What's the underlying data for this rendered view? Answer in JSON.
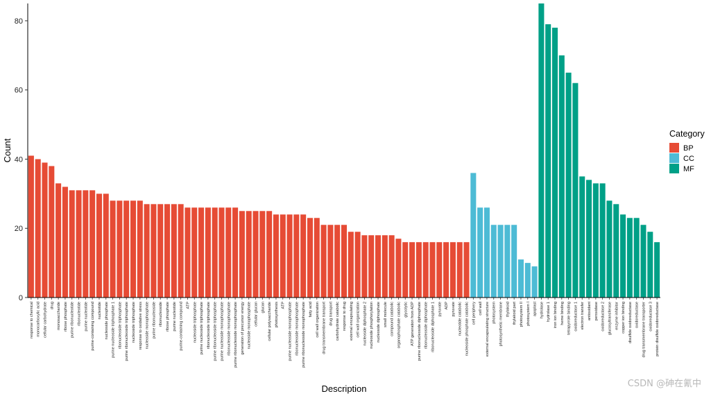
{
  "chart_data": {
    "type": "bar",
    "xlabel": "Description",
    "ylabel": "Count",
    "ylim": [
      0,
      85
    ],
    "yticks": [
      0,
      20,
      40,
      60,
      80
    ],
    "grid": false,
    "legend": {
      "title": "Category",
      "placement": "right",
      "entries": [
        {
          "name": "BP",
          "color": "#E64B35"
        },
        {
          "name": "CC",
          "color": "#4DBBD5"
        },
        {
          "name": "MF",
          "color": "#00A087"
        }
      ]
    },
    "bars": [
      {
        "label": "response to chemical",
        "value": 41,
        "category": "BP"
      },
      {
        "label": "monocarboxylic acid",
        "value": 40,
        "category": "BP"
      },
      {
        "label": "cellular carbohydrate",
        "value": 39,
        "category": "BP"
      },
      {
        "label": "drug",
        "value": 38,
        "category": "BP"
      },
      {
        "label": "monosaccharide",
        "value": 33,
        "category": "BP"
      },
      {
        "label": "ribose phosphate",
        "value": 32,
        "category": "BP"
      },
      {
        "label": "purine ribonucleotide",
        "value": 31,
        "category": "BP"
      },
      {
        "label": "ribonucleotide",
        "value": 31,
        "category": "BP"
      },
      {
        "label": "purine nucleotide",
        "value": 31,
        "category": "BP"
      },
      {
        "label": "purine-containing compound",
        "value": 31,
        "category": "BP"
      },
      {
        "label": "nucleotide",
        "value": 30,
        "category": "BP"
      },
      {
        "label": "nucleoside phosphate",
        "value": 30,
        "category": "BP"
      },
      {
        "label": "purine nucleoside triphosphate 1",
        "value": 28,
        "category": "BP"
      },
      {
        "label": "ribonucleoside triphosphate",
        "value": 28,
        "category": "BP"
      },
      {
        "label": "purine ribonucleoside triphosphate",
        "value": 28,
        "category": "BP"
      },
      {
        "label": "nucleoside triphosphate",
        "value": 28,
        "category": "BP"
      },
      {
        "label": "response to oxidative stress",
        "value": 28,
        "category": "BP"
      },
      {
        "label": "nucleoside monophosphate",
        "value": 27,
        "category": "BP"
      },
      {
        "label": "purine ribonucleoside",
        "value": 27,
        "category": "BP"
      },
      {
        "label": "ribonucleoside",
        "value": 27,
        "category": "BP"
      },
      {
        "label": "ribose phosphate",
        "value": 27,
        "category": "BP"
      },
      {
        "label": "purine nucleotide",
        "value": 27,
        "category": "BP"
      },
      {
        "label": "purine-containing compound",
        "value": 27,
        "category": "BP"
      },
      {
        "label": "ATP",
        "value": 26,
        "category": "BP"
      },
      {
        "label": "nucleoside triphosphate",
        "value": 26,
        "category": "BP"
      },
      {
        "label": "purine nucleoside triphosphate",
        "value": 26,
        "category": "BP"
      },
      {
        "label": "ribonucleoside triphosphate",
        "value": 26,
        "category": "BP"
      },
      {
        "label": "purine ribonucleoside triphosphate",
        "value": 26,
        "category": "BP"
      },
      {
        "label": "purine nucleoside monophosphate",
        "value": 26,
        "category": "BP"
      },
      {
        "label": "ribonucleoside monophosphate",
        "value": 26,
        "category": "BP"
      },
      {
        "label": "purine ribonucleoside monophosphate",
        "value": 26,
        "category": "BP"
      },
      {
        "label": "generation of precursor energy",
        "value": 25,
        "category": "BP"
      },
      {
        "label": "nucleoside monophosphate",
        "value": 25,
        "category": "BP"
      },
      {
        "label": "cellular glucan",
        "value": 25,
        "category": "BP"
      },
      {
        "label": "glucan",
        "value": 25,
        "category": "BP"
      },
      {
        "label": "cellular polysaccharide",
        "value": 25,
        "category": "BP"
      },
      {
        "label": "photosynthesis",
        "value": 24,
        "category": "BP"
      },
      {
        "label": "ATP",
        "value": 24,
        "category": "BP"
      },
      {
        "label": "purine nucleoside monophosphate",
        "value": 24,
        "category": "BP"
      },
      {
        "label": "ribonucleoside monophosphate",
        "value": 24,
        "category": "BP"
      },
      {
        "label": "purine ribonucleoside monophosphate",
        "value": 24,
        "category": "BP"
      },
      {
        "label": "fatty acid",
        "value": 23,
        "category": "BP"
      },
      {
        "label": "cell wall organization",
        "value": 23,
        "category": "BP"
      },
      {
        "label": "drug transmembrane transport",
        "value": 21,
        "category": "BP"
      },
      {
        "label": "drug transport",
        "value": 21,
        "category": "BP"
      },
      {
        "label": "carbohydrate catabolic",
        "value": 21,
        "category": "BP"
      },
      {
        "label": "response to drug",
        "value": 21,
        "category": "BP"
      },
      {
        "label": "external encapsulating",
        "value": 19,
        "category": "BP"
      },
      {
        "label": "cell wall organization",
        "value": 19,
        "category": "BP"
      },
      {
        "label": "nucleoside diphosphate 2",
        "value": 18,
        "category": "BP"
      },
      {
        "label": "nucleoside phosphorylation",
        "value": 18,
        "category": "BP"
      },
      {
        "label": "nucleoside diphosphate",
        "value": 18,
        "category": "BP"
      },
      {
        "label": "small molecule",
        "value": 18,
        "category": "BP"
      },
      {
        "label": "compound catabolic",
        "value": 18,
        "category": "BP"
      },
      {
        "label": "organophosphate catabolic",
        "value": 17,
        "category": "BP"
      },
      {
        "label": "glycolytic",
        "value": 16,
        "category": "BP"
      },
      {
        "label": "ATP generation from ADP",
        "value": 16,
        "category": "BP"
      },
      {
        "label": "purine ribonucleoside diphosphate",
        "value": 16,
        "category": "BP"
      },
      {
        "label": "ribonucleoside diphosphate",
        "value": 16,
        "category": "BP"
      },
      {
        "label": "ribonucleoside diphosphate 1",
        "value": 16,
        "category": "BP"
      },
      {
        "label": "pyruvate",
        "value": 16,
        "category": "BP"
      },
      {
        "label": "ADP",
        "value": 16,
        "category": "BP"
      },
      {
        "label": "pyruvate",
        "value": 16,
        "category": "BP"
      },
      {
        "label": "nucleotide catabolic",
        "value": 16,
        "category": "BP"
      },
      {
        "label": "nucleoside phosphate catabolic",
        "value": 16,
        "category": "BP"
      },
      {
        "label": "cell periphery",
        "value": 36,
        "category": "CC"
      },
      {
        "label": "cell wall",
        "value": 26,
        "category": "CC"
      },
      {
        "label": "external encapsulating structure",
        "value": 26,
        "category": "CC"
      },
      {
        "label": "photosystem",
        "value": 21,
        "category": "CC"
      },
      {
        "label": "photosynthetic membrane",
        "value": 21,
        "category": "CC"
      },
      {
        "label": "thylakoid",
        "value": 21,
        "category": "CC"
      },
      {
        "label": "thylakoid part",
        "value": 21,
        "category": "CC"
      },
      {
        "label": "photosystem II",
        "value": 11,
        "category": "CC"
      },
      {
        "label": "photosystem I",
        "value": 10,
        "category": "CC"
      },
      {
        "label": "apoplast",
        "value": 9,
        "category": "CC"
      },
      {
        "label": "hydrolase",
        "value": 85,
        "category": "MF"
      },
      {
        "label": "hydrolase 1",
        "value": 79,
        "category": "MF"
      },
      {
        "label": "iron ion binding",
        "value": 78,
        "category": "MF"
      },
      {
        "label": "heme binding",
        "value": 70,
        "category": "MF"
      },
      {
        "label": "tetrapyrrole binding",
        "value": 65,
        "category": "MF"
      },
      {
        "label": "oxidoreductase 1",
        "value": 62,
        "category": "MF"
      },
      {
        "label": "electron transfer",
        "value": 35,
        "category": "MF"
      },
      {
        "label": "antioxidant",
        "value": 34,
        "category": "MF"
      },
      {
        "label": "peroxidase",
        "value": 33,
        "category": "MF"
      },
      {
        "label": "oxidoreductase 2",
        "value": 33,
        "category": "MF"
      },
      {
        "label": "glucosyltransferase",
        "value": 28,
        "category": "MF"
      },
      {
        "label": "enzyme inhibitor",
        "value": 27,
        "category": "MF"
      },
      {
        "label": "copper ion binding",
        "value": 24,
        "category": "MF"
      },
      {
        "label": "disulfide oxidoreductase",
        "value": 23,
        "category": "MF"
      },
      {
        "label": "oxidoreductase",
        "value": 23,
        "category": "MF"
      },
      {
        "label": "drug transmembrane transporter",
        "value": 21,
        "category": "MF"
      },
      {
        "label": "oxidoreductase 3",
        "value": 19,
        "category": "MF"
      },
      {
        "label": "protein disulfide oxidoreductase",
        "value": 16,
        "category": "MF"
      }
    ]
  },
  "watermark": "CSDN @砷在氰中"
}
